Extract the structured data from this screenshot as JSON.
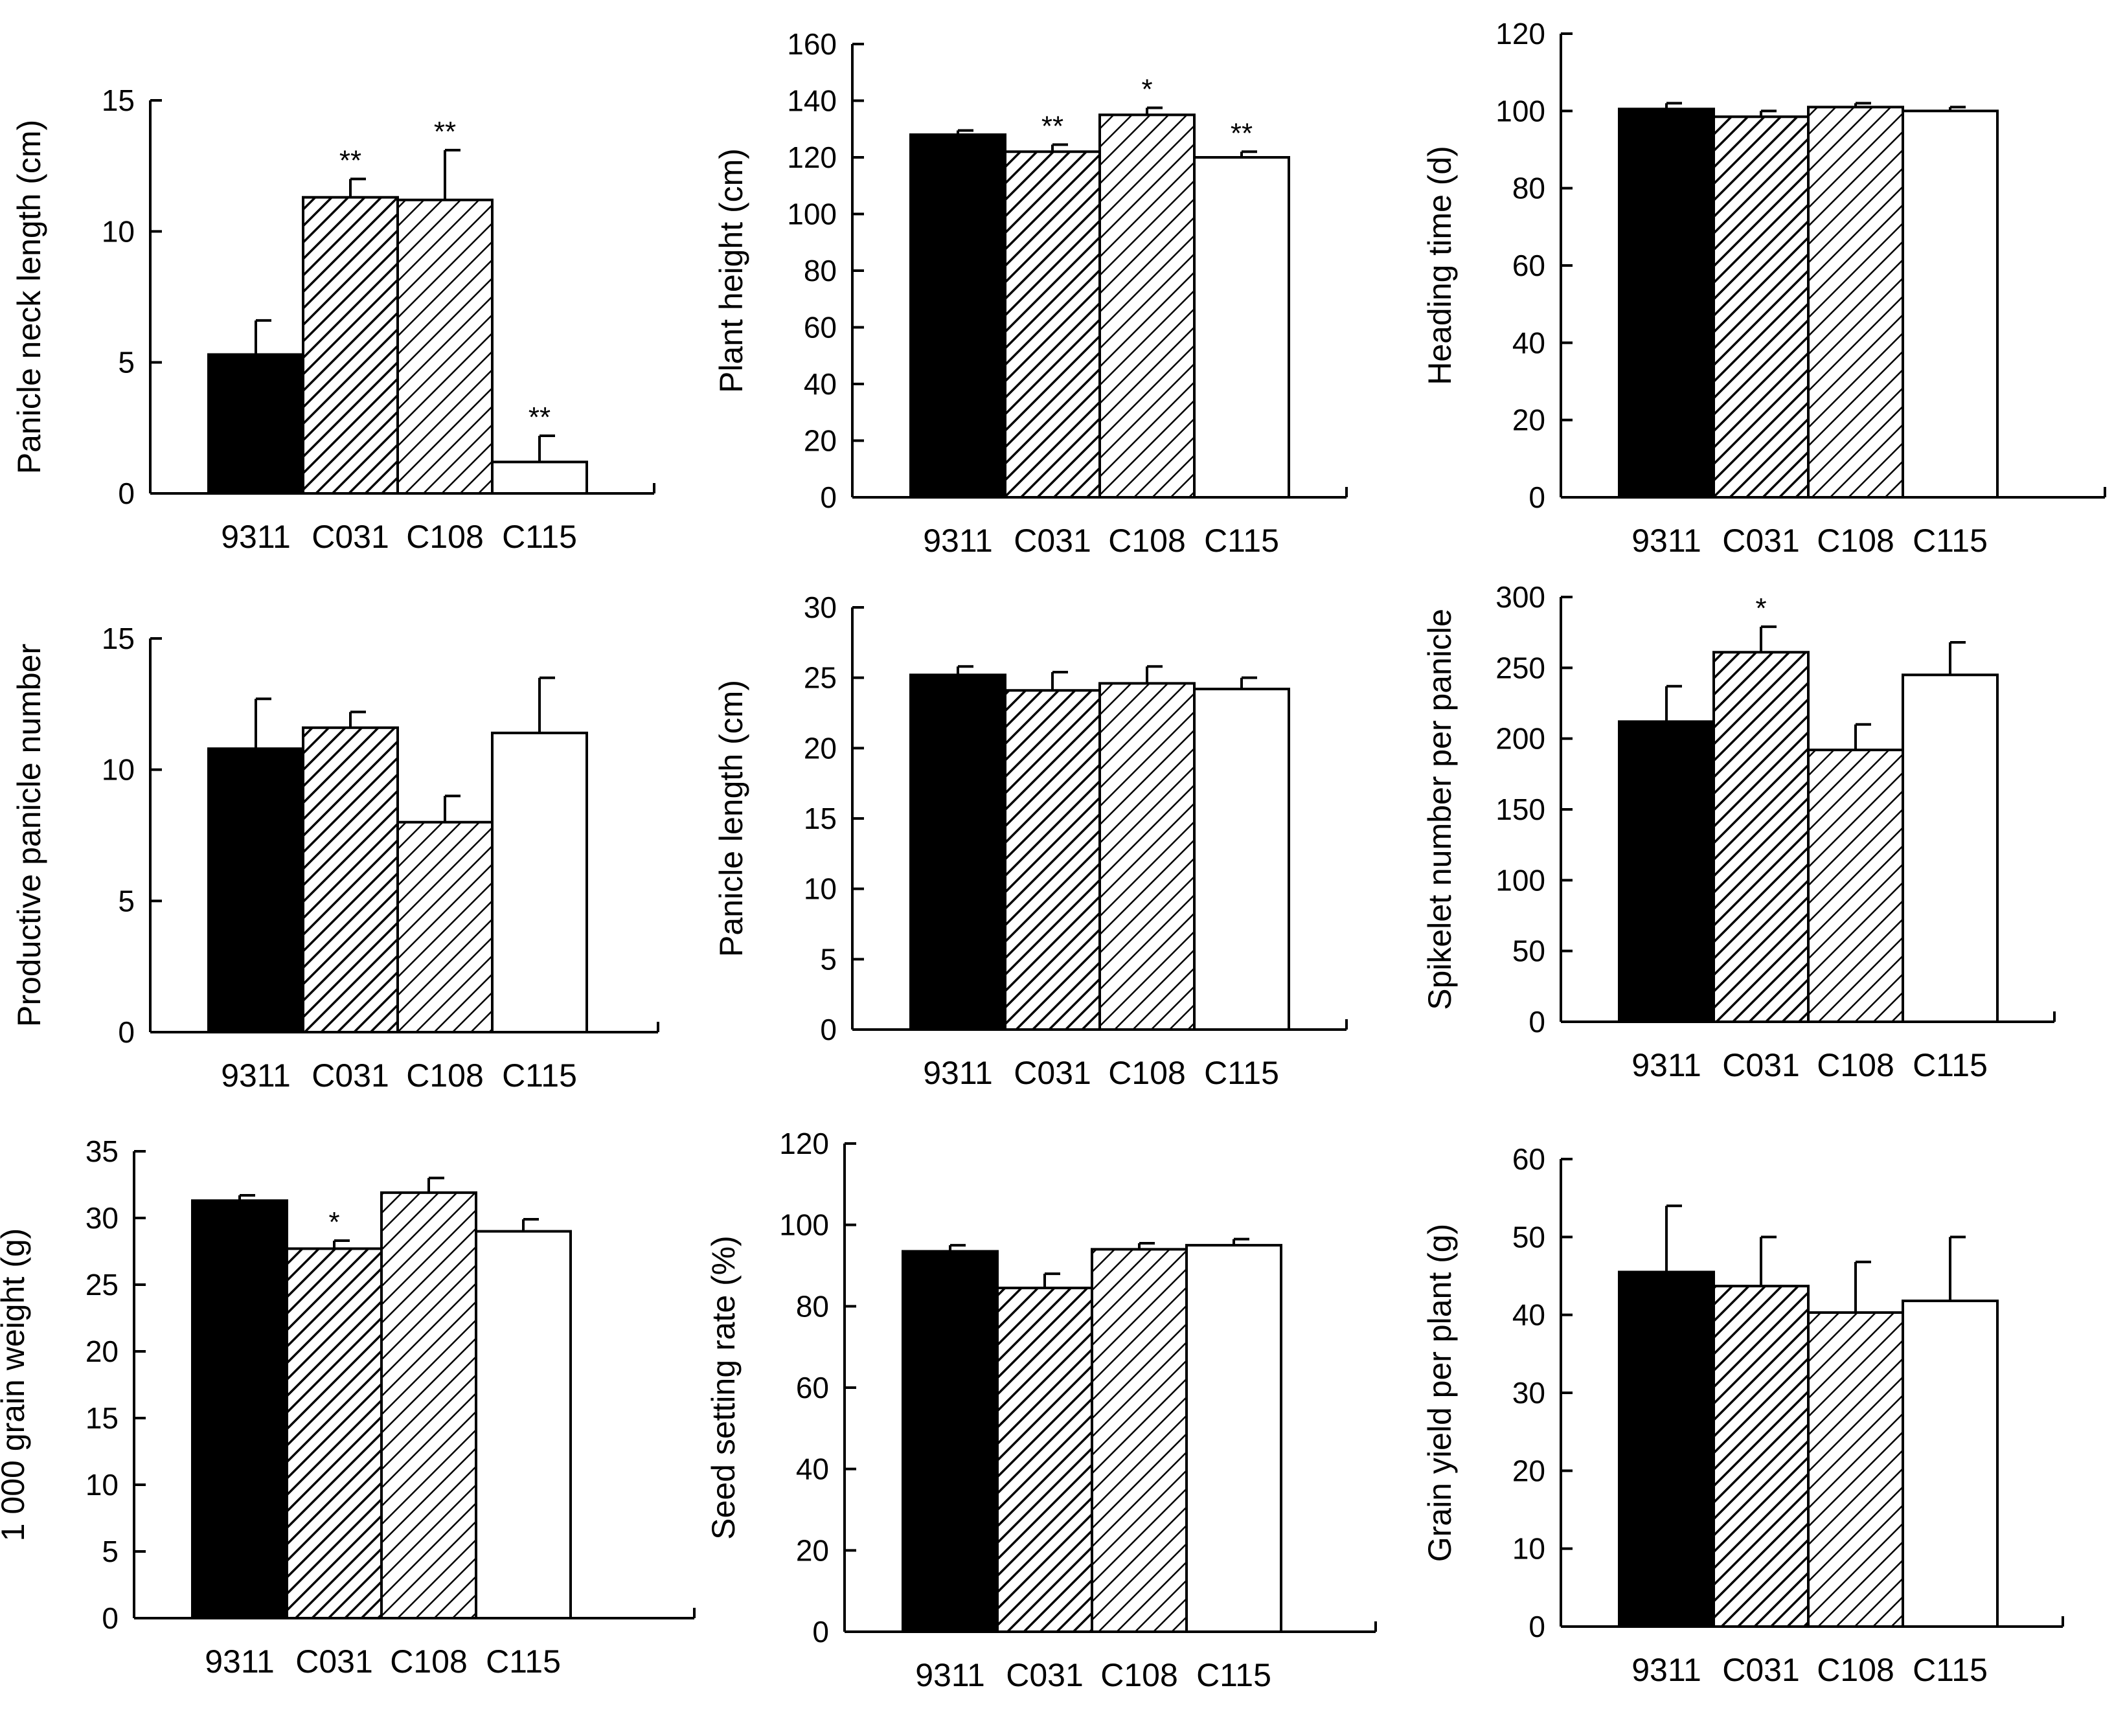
{
  "chart_data": [
    {
      "type": "bar",
      "ylabel": "Panicle neck length (cm)",
      "ylim": [
        0,
        15
      ],
      "ticks": [
        0,
        5,
        10,
        15
      ],
      "categories": [
        "9311",
        "C031",
        "C108",
        "C115"
      ],
      "values": [
        5.3,
        11.3,
        11.2,
        1.2
      ],
      "errors": [
        1.3,
        0.7,
        1.9,
        1.0
      ],
      "significance": [
        "",
        "**",
        "**",
        "**"
      ]
    },
    {
      "type": "bar",
      "ylabel": "Plant height (cm)",
      "ylim": [
        0,
        160
      ],
      "ticks": [
        0,
        20,
        40,
        60,
        80,
        100,
        120,
        140,
        160
      ],
      "categories": [
        "9311",
        "C031",
        "C108",
        "C115"
      ],
      "values": [
        128,
        122,
        135,
        120
      ],
      "errors": [
        1.5,
        2.5,
        2.5,
        2
      ],
      "significance": [
        "",
        "**",
        "*",
        "**"
      ]
    },
    {
      "type": "bar",
      "ylabel": "Heading time (d)",
      "ylim": [
        0,
        120
      ],
      "ticks": [
        0,
        20,
        40,
        60,
        80,
        100,
        120
      ],
      "categories": [
        "9311",
        "C031",
        "C108",
        "C115"
      ],
      "values": [
        100.5,
        98.5,
        101,
        100
      ],
      "errors": [
        1.5,
        1.5,
        1,
        1
      ],
      "significance": [
        "",
        "",
        "",
        ""
      ]
    },
    {
      "type": "bar",
      "ylabel": "Productive panicle number",
      "ylim": [
        0,
        15
      ],
      "ticks": [
        0,
        5,
        10,
        15
      ],
      "categories": [
        "9311",
        "C031",
        "C108",
        "C115"
      ],
      "values": [
        10.8,
        11.6,
        8.0,
        11.4
      ],
      "errors": [
        1.9,
        0.6,
        1.0,
        2.1
      ],
      "significance": [
        "",
        "",
        "",
        ""
      ]
    },
    {
      "type": "bar",
      "ylabel": "Panicle length (cm)",
      "ylim": [
        0,
        30
      ],
      "ticks": [
        0,
        5,
        10,
        15,
        20,
        25,
        30
      ],
      "categories": [
        "9311",
        "C031",
        "C108",
        "C115"
      ],
      "values": [
        25.2,
        24.1,
        24.6,
        24.2
      ],
      "errors": [
        0.6,
        1.3,
        1.2,
        0.8
      ],
      "significance": [
        "",
        "",
        "",
        ""
      ]
    },
    {
      "type": "bar",
      "ylabel": "Spikelet number per panicle",
      "ylim": [
        0,
        300
      ],
      "ticks": [
        0,
        50,
        100,
        150,
        200,
        250,
        300
      ],
      "categories": [
        "9311",
        "C031",
        "C108",
        "C115"
      ],
      "values": [
        212,
        261,
        192,
        245
      ],
      "errors": [
        25,
        18,
        18,
        23
      ],
      "significance": [
        "",
        "*",
        "",
        ""
      ]
    },
    {
      "type": "bar",
      "ylabel": "1 000 grain weight (g)",
      "ylim": [
        0,
        35
      ],
      "ticks": [
        0,
        5,
        10,
        15,
        20,
        25,
        30,
        35
      ],
      "categories": [
        "9311",
        "C031",
        "C108",
        "C115"
      ],
      "values": [
        31.3,
        27.7,
        31.9,
        29.0
      ],
      "errors": [
        0.4,
        0.6,
        1.1,
        0.9
      ],
      "significance": [
        "",
        "*",
        "",
        ""
      ]
    },
    {
      "type": "bar",
      "ylabel": "Seed setting rate (%)",
      "ylim": [
        0,
        120
      ],
      "ticks": [
        0,
        20,
        40,
        60,
        80,
        100,
        120
      ],
      "categories": [
        "9311",
        "C031",
        "C108",
        "C115"
      ],
      "values": [
        93.5,
        84.5,
        94,
        95
      ],
      "errors": [
        1.5,
        3.5,
        1.5,
        1.5
      ],
      "significance": [
        "",
        "",
        "",
        ""
      ]
    },
    {
      "type": "bar",
      "ylabel": "Grain yield per plant (g)",
      "ylim": [
        0,
        60
      ],
      "ticks": [
        0,
        10,
        20,
        30,
        40,
        50,
        60
      ],
      "categories": [
        "9311",
        "C031",
        "C108",
        "C115"
      ],
      "values": [
        45.5,
        43.7,
        40.3,
        41.8
      ],
      "errors": [
        8.5,
        6.3,
        6.5,
        8.2
      ],
      "significance": [
        "",
        "",
        "",
        ""
      ]
    }
  ],
  "series_fill": [
    "#000000",
    "hatch-dense",
    "hatch-sparse",
    "#ffffff"
  ]
}
